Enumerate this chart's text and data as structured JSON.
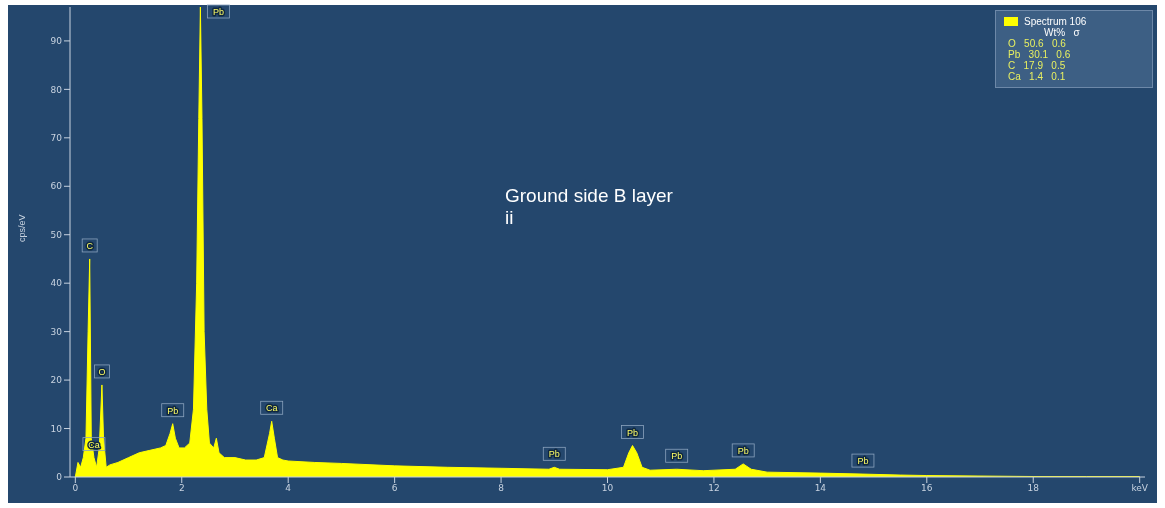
{
  "chart_data": {
    "type": "area",
    "ylabel": "cps/eV",
    "x": [
      0,
      0.05,
      0.1,
      0.15,
      0.2,
      0.24,
      0.27,
      0.3,
      0.35,
      0.4,
      0.45,
      0.5,
      0.53,
      0.58,
      0.65,
      0.8,
      1.0,
      1.2,
      1.4,
      1.6,
      1.7,
      1.78,
      1.83,
      1.88,
      1.95,
      2.05,
      2.15,
      2.22,
      2.28,
      2.32,
      2.35,
      2.38,
      2.42,
      2.47,
      2.52,
      2.6,
      2.65,
      2.7,
      2.8,
      3.0,
      3.2,
      3.4,
      3.55,
      3.65,
      3.69,
      3.74,
      3.8,
      3.9,
      4.0,
      4.5,
      5,
      6,
      7,
      8,
      8.9,
      9.0,
      9.1,
      10.0,
      10.3,
      10.4,
      10.47,
      10.55,
      10.65,
      10.8,
      11.3,
      11.8,
      12.4,
      12.55,
      12.7,
      13,
      14,
      14.8,
      15.5,
      16,
      17,
      18,
      19,
      20
    ],
    "series": [
      {
        "name": "Spectrum 106",
        "color": "#ffff00",
        "values": [
          0,
          3,
          2,
          4,
          8,
          30,
          45,
          8,
          4,
          2,
          6,
          19,
          8,
          2,
          2.5,
          3,
          4,
          5,
          5.5,
          6,
          6.5,
          9,
          11,
          8,
          6,
          6,
          7,
          14,
          40,
          74,
          97,
          74,
          30,
          14,
          7,
          6,
          8,
          5,
          4,
          4,
          3.5,
          3.5,
          4,
          9,
          11.5,
          8,
          4,
          3.5,
          3.3,
          3,
          2.8,
          2.3,
          2,
          1.8,
          1.6,
          2,
          1.6,
          1.5,
          2,
          5,
          6.5,
          5,
          2,
          1.4,
          1.6,
          1.3,
          1.6,
          2.7,
          1.6,
          1,
          0.8,
          0.6,
          0.4,
          0.3,
          0.2,
          0.1,
          0.1,
          0.1
        ]
      }
    ],
    "xlim": [
      -0.1,
      20.1
    ],
    "ylim": [
      0,
      97
    ],
    "xticks": [
      0,
      2,
      4,
      6,
      8,
      10,
      12,
      14,
      16,
      18,
      {
        "value": 20,
        "label": "keV"
      }
    ],
    "yticks": [
      0,
      10,
      20,
      30,
      40,
      50,
      60,
      70,
      80,
      90
    ],
    "legend": "top right",
    "grid": false,
    "annotations": [
      "Ground side B layer ii",
      "Wt%   σ",
      "O   50.6   0.6",
      "Pb   30.1   0.6",
      "C   17.9   0.5",
      "Ca   1.4   0.1",
      {
        "text": "C",
        "x": 0.27,
        "y": 45
      },
      {
        "text": "Ca",
        "x": 0.35,
        "y": 4
      },
      {
        "text": "O",
        "x": 0.5,
        "y": 19
      },
      {
        "text": "Pb",
        "x": 1.83,
        "y": 11
      },
      {
        "text": "Pb",
        "x": 2.35,
        "y": 95
      },
      {
        "text": "Ca",
        "x": 3.69,
        "y": 11.5
      },
      {
        "text": "Pb",
        "x": 9.0,
        "y": 2
      },
      {
        "text": "Pb",
        "x": 10.47,
        "y": 6.5
      },
      {
        "text": "Pb",
        "x": 11.3,
        "y": 1.6
      },
      {
        "text": "Pb",
        "x": 12.55,
        "y": 2.7
      },
      {
        "text": "Pb",
        "x": 14.8,
        "y": 0.6
      }
    ]
  }
}
